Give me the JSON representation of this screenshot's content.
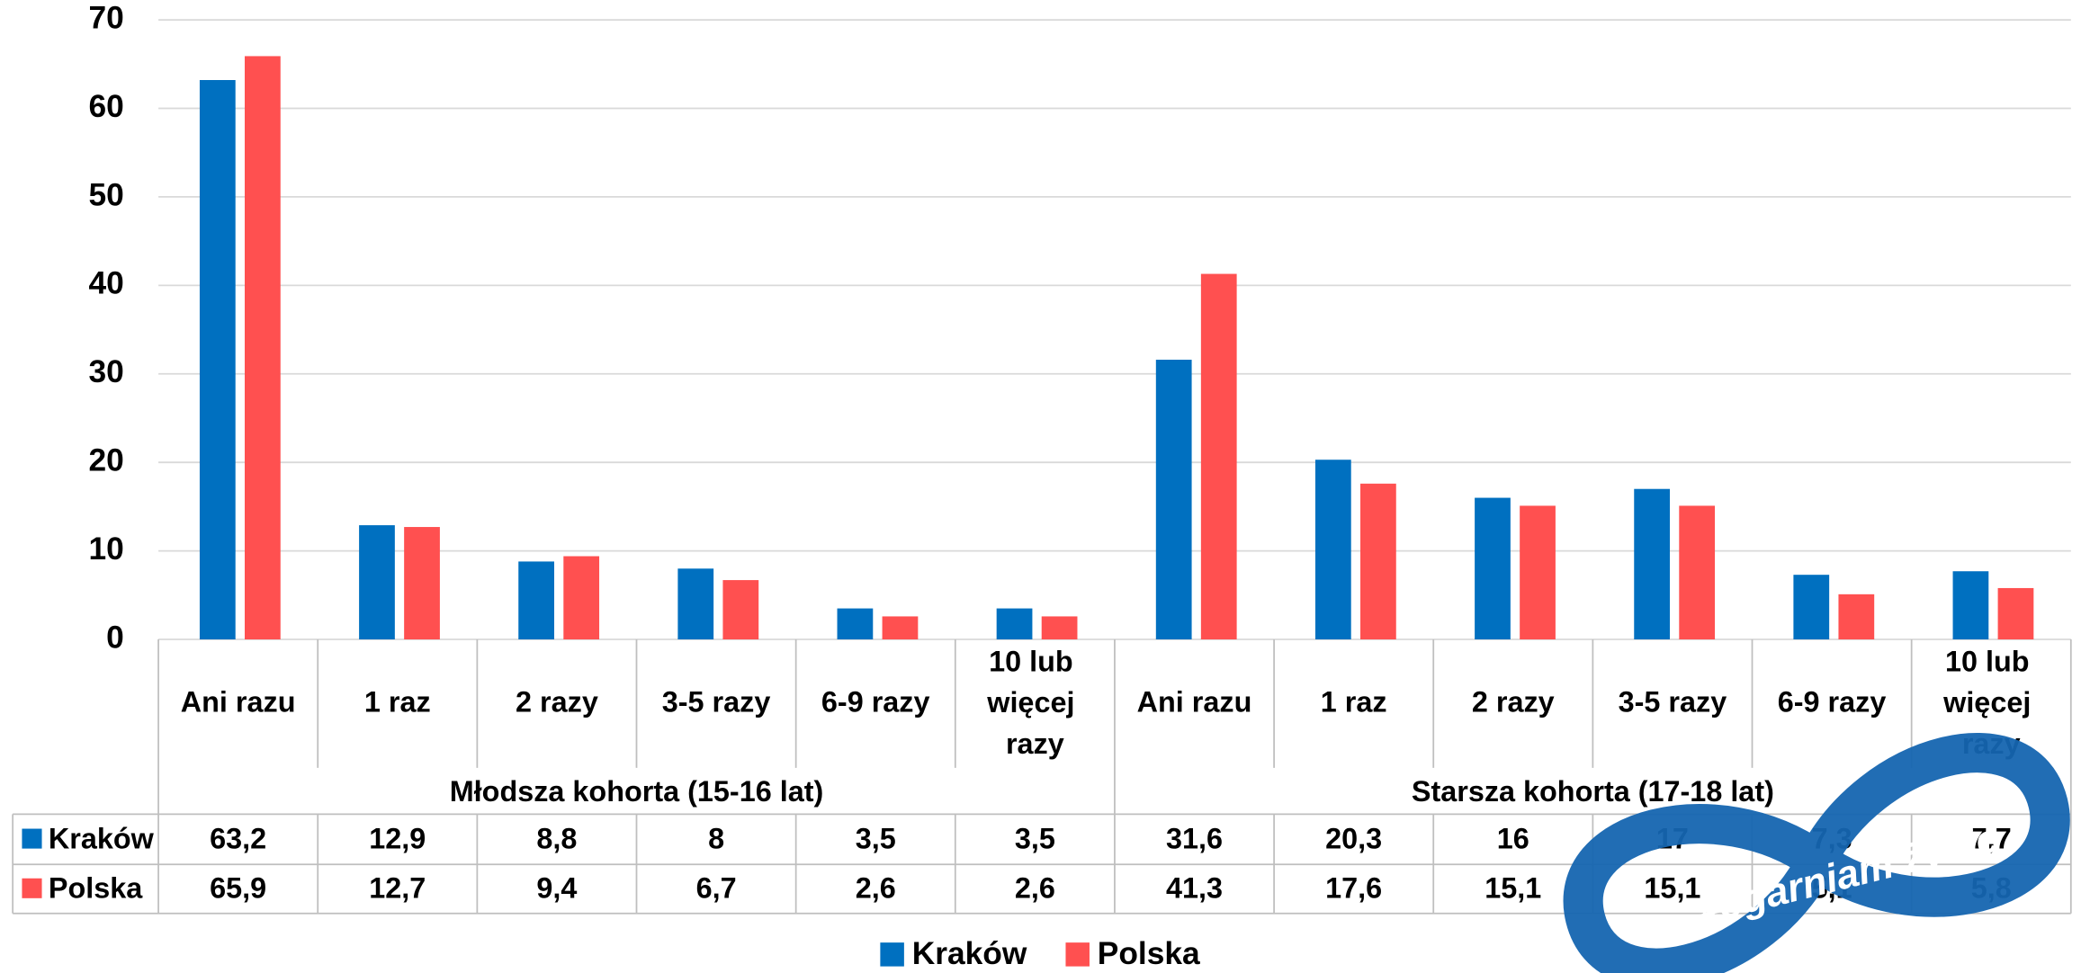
{
  "chart_data": {
    "type": "bar",
    "categories": [
      "Ani razu",
      "1 raz",
      "2 razy",
      "3-5 razy",
      "6-9 razy",
      "10 lub więcej razy",
      "Ani razu",
      "1 raz",
      "2 razy",
      "3-5 razy",
      "6-9 razy",
      "10 lub więcej razy"
    ],
    "groups": [
      "Młodsza kohorta (15-16 lat)",
      "Starsza kohorta (17-18 lat)"
    ],
    "series": [
      {
        "name": "Kraków",
        "color": "#0070c0",
        "values": [
          63.2,
          12.9,
          8.8,
          8,
          3.5,
          3.5,
          31.6,
          20.3,
          16,
          17,
          7.3,
          7.7
        ],
        "value_labels": [
          "63,2",
          "12,9",
          "8,8",
          "8",
          "3,5",
          "3,5",
          "31,6",
          "20,3",
          "16",
          "17",
          "7,3",
          "7,7"
        ]
      },
      {
        "name": "Polska",
        "color": "#ff5050",
        "values": [
          65.9,
          12.7,
          9.4,
          6.7,
          2.6,
          2.6,
          41.3,
          17.6,
          15.1,
          15.1,
          5.1,
          5.8
        ],
        "value_labels": [
          "65,9",
          "12,7",
          "9,4",
          "6,7",
          "2,6",
          "2,6",
          "41,3",
          "17,6",
          "15,1",
          "15,1",
          "5,1",
          "5,8"
        ]
      }
    ],
    "ylim": [
      0,
      70
    ],
    "yticks": [
      0,
      10,
      20,
      30,
      40,
      50,
      60,
      70
    ],
    "grid": true,
    "legend": "bottom",
    "logo_text": "#ogarniam życie"
  }
}
